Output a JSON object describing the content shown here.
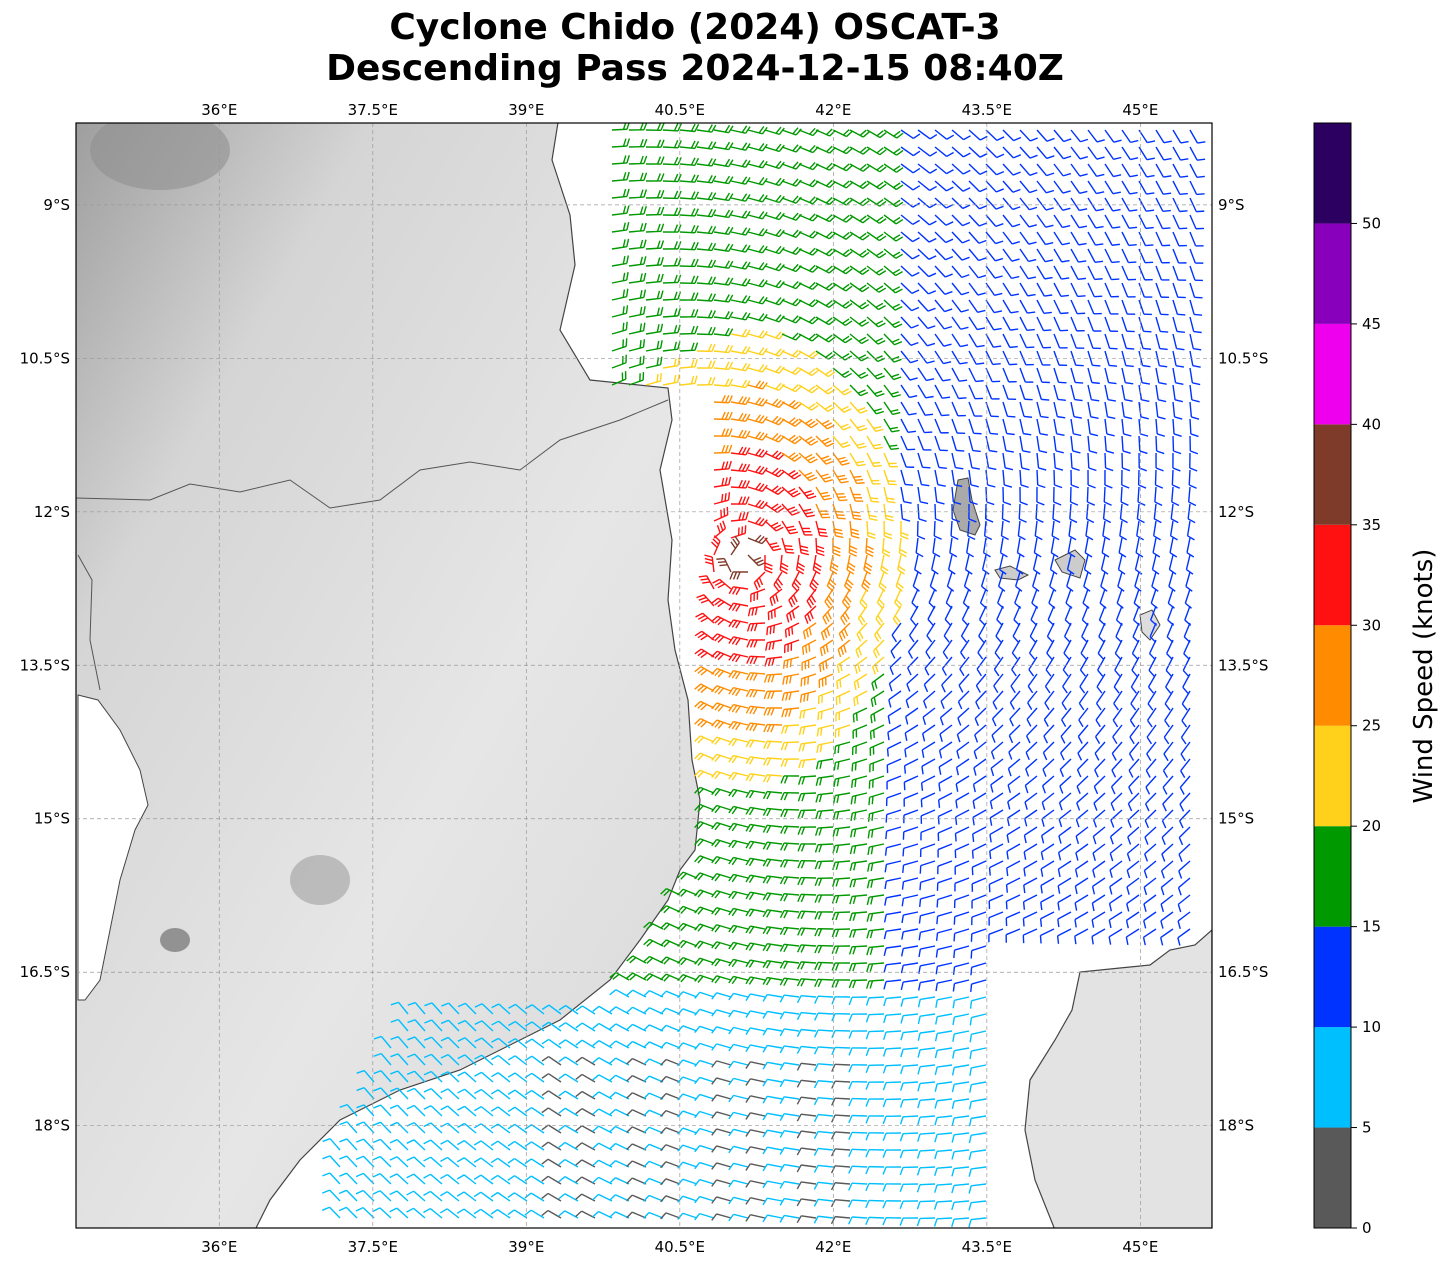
{
  "title_line1": "Cyclone Chido (2024) OSCAT-3",
  "title_line2": "Descending Pass 2024-12-15 08:40Z",
  "map": {
    "lon_range": [
      34.6,
      45.7
    ],
    "lat_range": [
      -19.0,
      -8.2
    ],
    "lon_ticks": [
      {
        "value": 36.0,
        "label": "36°E"
      },
      {
        "value": 37.5,
        "label": "37.5°E"
      },
      {
        "value": 39.0,
        "label": "39°E"
      },
      {
        "value": 40.5,
        "label": "40.5°E"
      },
      {
        "value": 42.0,
        "label": "42°E"
      },
      {
        "value": 43.5,
        "label": "43.5°E"
      },
      {
        "value": 45.0,
        "label": "45°E"
      }
    ],
    "lat_ticks": [
      {
        "value": -9.0,
        "label": "9°S"
      },
      {
        "value": -10.5,
        "label": "10.5°S"
      },
      {
        "value": -12.0,
        "label": "12°S"
      },
      {
        "value": -13.5,
        "label": "13.5°S"
      },
      {
        "value": -15.0,
        "label": "15°S"
      },
      {
        "value": -16.5,
        "label": "16.5°S"
      },
      {
        "value": -18.0,
        "label": "18°S"
      }
    ],
    "gridlines": true,
    "background": "grayscale land topography with coastlines; wind barbs over ocean"
  },
  "colorbar": {
    "label": "Wind Speed (knots)",
    "ticks": [
      "0",
      "5",
      "10",
      "15",
      "20",
      "25",
      "30",
      "35",
      "40",
      "45",
      "50"
    ],
    "bins": [
      {
        "min": 0,
        "max": 5,
        "color": "#595959"
      },
      {
        "min": 5,
        "max": 10,
        "color": "#00bfff"
      },
      {
        "min": 10,
        "max": 15,
        "color": "#0033ff"
      },
      {
        "min": 15,
        "max": 20,
        "color": "#009900"
      },
      {
        "min": 20,
        "max": 25,
        "color": "#ffd11a"
      },
      {
        "min": 25,
        "max": 30,
        "color": "#ff8c00"
      },
      {
        "min": 30,
        "max": 35,
        "color": "#ff1111"
      },
      {
        "min": 35,
        "max": 40,
        "color": "#7f3b2a"
      },
      {
        "min": 40,
        "max": 45,
        "color": "#ee00ee"
      },
      {
        "min": 45,
        "max": 50,
        "color": "#8800bb"
      },
      {
        "min": 50,
        "max": 55,
        "color": "#2b0060"
      }
    ]
  }
}
